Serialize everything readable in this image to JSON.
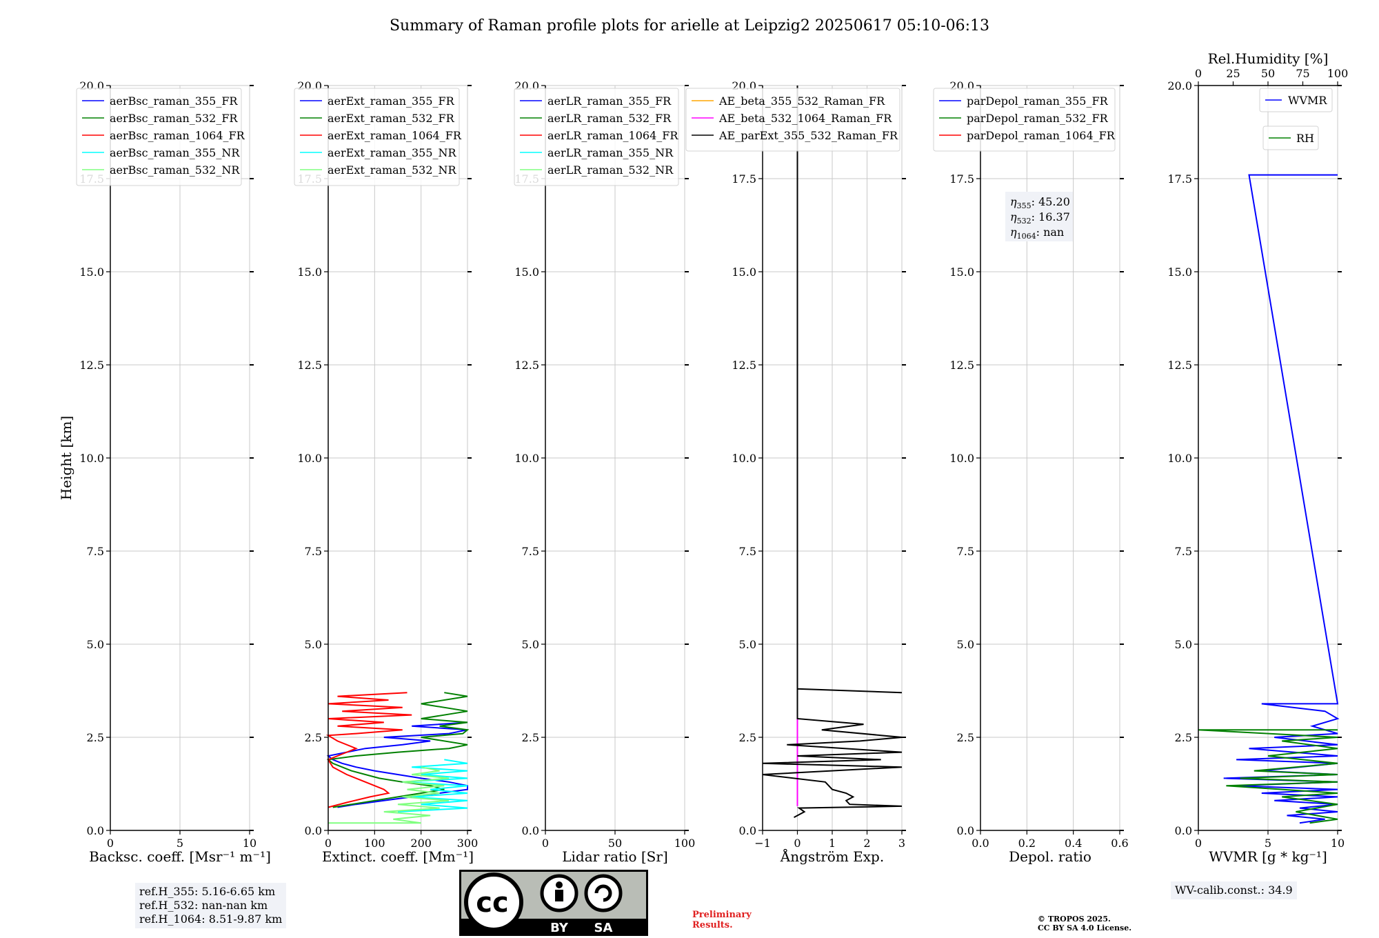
{
  "figure": {
    "title": "Summary of Raman profile plots for arielle at Leipzig2 20250617 05:10-06:13"
  },
  "chart_data": [
    {
      "type": "line",
      "panel": "backscatter",
      "xlabel": "Backsc. coeff. [Msr⁻¹ m⁻¹]",
      "ylabel": "Height [km]",
      "xlim": [
        0,
        10
      ],
      "ylim": [
        0,
        20
      ],
      "xticks": [
        "0",
        "5",
        "10"
      ],
      "yticks": [
        "0.0",
        "2.5",
        "5.0",
        "7.5",
        "10.0",
        "12.5",
        "15.0",
        "17.5",
        "20.0"
      ],
      "grid": true,
      "legend_position": "upper-left",
      "series": [
        {
          "name": "aerBsc_raman_355_FR",
          "color": "#0000ff",
          "points": []
        },
        {
          "name": "aerBsc_raman_532_FR",
          "color": "#008000",
          "points": []
        },
        {
          "name": "aerBsc_raman_1064_FR",
          "color": "#ff0000",
          "points": []
        },
        {
          "name": "aerBsc_raman_355_NR",
          "color": "#00ffff",
          "points": []
        },
        {
          "name": "aerBsc_raman_532_NR",
          "color": "#80ff80",
          "points": []
        }
      ],
      "info": [
        "ref.H_355: 5.16-6.65 km",
        "ref.H_532: nan-nan km",
        "ref.H_1064: 8.51-9.87 km"
      ]
    },
    {
      "type": "line",
      "panel": "extinction",
      "xlabel": "Extinct. coeff. [Mm⁻¹]",
      "xlim": [
        0,
        300
      ],
      "ylim": [
        0,
        20
      ],
      "xticks": [
        "0",
        "100",
        "200",
        "300"
      ],
      "yticks": [
        "0.0",
        "2.5",
        "5.0",
        "7.5",
        "10.0",
        "12.5",
        "15.0",
        "17.5",
        "20.0"
      ],
      "grid": true,
      "legend_position": "upper-left",
      "series": [
        {
          "name": "aerExt_raman_355_FR",
          "color": "#0000ff",
          "points": [
            [
              20,
              0.62
            ],
            [
              60,
              0.7
            ],
            [
              120,
              0.8
            ],
            [
              180,
              0.9
            ],
            [
              240,
              1.0
            ],
            [
              300,
              1.1
            ],
            [
              300,
              1.2
            ],
            [
              260,
              1.3
            ],
            [
              200,
              1.4
            ],
            [
              150,
              1.5
            ],
            [
              100,
              1.6
            ],
            [
              60,
              1.7
            ],
            [
              30,
              1.8
            ],
            [
              10,
              1.9
            ],
            [
              0,
              2.0
            ],
            [
              40,
              2.1
            ],
            [
              80,
              2.2
            ],
            [
              160,
              2.3
            ],
            [
              220,
              2.4
            ],
            [
              120,
              2.5
            ],
            [
              260,
              2.6
            ],
            [
              300,
              2.7
            ],
            [
              180,
              2.8
            ],
            [
              300,
              2.9
            ]
          ]
        },
        {
          "name": "aerExt_raman_532_FR",
          "color": "#008000",
          "points": [
            [
              10,
              0.62
            ],
            [
              50,
              0.7
            ],
            [
              100,
              0.8
            ],
            [
              150,
              0.9
            ],
            [
              200,
              1.0
            ],
            [
              250,
              1.1
            ],
            [
              220,
              1.2
            ],
            [
              160,
              1.3
            ],
            [
              110,
              1.4
            ],
            [
              80,
              1.5
            ],
            [
              50,
              1.6
            ],
            [
              30,
              1.7
            ],
            [
              10,
              1.8
            ],
            [
              0,
              1.9
            ],
            [
              60,
              2.0
            ],
            [
              150,
              2.1
            ],
            [
              260,
              2.2
            ],
            [
              300,
              2.3
            ],
            [
              200,
              2.5
            ],
            [
              290,
              2.6
            ],
            [
              300,
              2.7
            ],
            [
              240,
              2.8
            ],
            [
              300,
              2.9
            ],
            [
              200,
              3.0
            ],
            [
              300,
              3.2
            ],
            [
              200,
              3.4
            ],
            [
              300,
              3.6
            ],
            [
              250,
              3.7
            ]
          ]
        },
        {
          "name": "aerExt_raman_1064_FR",
          "color": "#ff0000",
          "points": [
            [
              0,
              0.62
            ],
            [
              40,
              0.75
            ],
            [
              90,
              0.9
            ],
            [
              130,
              1.0
            ],
            [
              120,
              1.1
            ],
            [
              80,
              1.3
            ],
            [
              40,
              1.5
            ],
            [
              10,
              1.7
            ],
            [
              0,
              1.9
            ],
            [
              20,
              2.0
            ],
            [
              60,
              2.2
            ],
            [
              20,
              2.4
            ],
            [
              0,
              2.55
            ],
            [
              60,
              2.6
            ],
            [
              160,
              2.7
            ],
            [
              20,
              2.8
            ],
            [
              120,
              2.9
            ],
            [
              0,
              3.0
            ],
            [
              180,
              3.1
            ],
            [
              30,
              3.2
            ],
            [
              160,
              3.3
            ],
            [
              0,
              3.4
            ],
            [
              130,
              3.5
            ],
            [
              20,
              3.6
            ],
            [
              170,
              3.7
            ]
          ]
        },
        {
          "name": "aerExt_raman_355_NR",
          "color": "#00ffff",
          "points": [
            [
              150,
              0.5
            ],
            [
              300,
              0.6
            ],
            [
              200,
              0.7
            ],
            [
              300,
              0.8
            ],
            [
              180,
              0.9
            ],
            [
              300,
              1.0
            ],
            [
              220,
              1.1
            ],
            [
              300,
              1.2
            ],
            [
              160,
              1.3
            ],
            [
              300,
              1.4
            ],
            [
              200,
              1.5
            ],
            [
              300,
              1.6
            ],
            [
              180,
              1.7
            ],
            [
              300,
              1.8
            ],
            [
              250,
              1.9
            ]
          ]
        },
        {
          "name": "aerExt_raman_532_NR",
          "color": "#80ff80",
          "points": [
            [
              0,
              0.2
            ],
            [
              200,
              0.2
            ],
            [
              140,
              0.3
            ],
            [
              220,
              0.4
            ],
            [
              120,
              0.5
            ],
            [
              240,
              0.6
            ],
            [
              150,
              0.7
            ],
            [
              260,
              0.8
            ],
            [
              160,
              0.9
            ],
            [
              240,
              1.0
            ],
            [
              170,
              1.1
            ],
            [
              250,
              1.2
            ],
            [
              160,
              1.3
            ],
            [
              260,
              1.4
            ],
            [
              180,
              1.5
            ],
            [
              240,
              1.6
            ],
            [
              200,
              1.7
            ]
          ]
        }
      ]
    },
    {
      "type": "line",
      "panel": "lidar_ratio",
      "xlabel": "Lidar ratio [Sr]",
      "xlim": [
        0,
        120
      ],
      "ylim": [
        0,
        20
      ],
      "xticks": [
        "0",
        "50",
        "100"
      ],
      "yticks": [
        "0.0",
        "2.5",
        "5.0",
        "7.5",
        "10.0",
        "12.5",
        "15.0",
        "17.5",
        "20.0"
      ],
      "grid": true,
      "legend_position": "upper-left",
      "series": [
        {
          "name": "aerLR_raman_355_FR",
          "color": "#0000ff",
          "points": []
        },
        {
          "name": "aerLR_raman_532_FR",
          "color": "#008000",
          "points": []
        },
        {
          "name": "aerLR_raman_1064_FR",
          "color": "#ff0000",
          "points": []
        },
        {
          "name": "aerLR_raman_355_NR",
          "color": "#00ffff",
          "points": []
        },
        {
          "name": "aerLR_raman_532_NR",
          "color": "#80ff80",
          "points": []
        }
      ]
    },
    {
      "type": "line",
      "panel": "angstrom",
      "xlabel": "Ångström Exp.",
      "xlim": [
        -1,
        3
      ],
      "ylim": [
        0,
        20
      ],
      "xticks": [
        "−1",
        "0",
        "1",
        "2",
        "3"
      ],
      "yticks": [
        "0.0",
        "2.5",
        "5.0",
        "7.5",
        "10.0",
        "12.5",
        "15.0",
        "17.5",
        "20.0"
      ],
      "grid": true,
      "legend_position": "upper-left",
      "series": [
        {
          "name": "AE_beta_355_532_Raman_FR",
          "color": "#ffa500",
          "points": []
        },
        {
          "name": "AE_beta_532_1064_Raman_FR",
          "color": "#ff00ff",
          "points": [
            [
              0,
              0.65
            ],
            [
              0,
              20
            ]
          ]
        },
        {
          "name": "AE_parExt_355_532_Raman_FR",
          "color": "#000000",
          "points": [
            [
              -0.1,
              0.35
            ],
            [
              0.2,
              0.5
            ],
            [
              0.05,
              0.6
            ],
            [
              3,
              0.65
            ],
            [
              1.5,
              0.7
            ],
            [
              1.4,
              0.8
            ],
            [
              1.6,
              0.9
            ],
            [
              1.4,
              1.0
            ],
            [
              1.0,
              1.1
            ],
            [
              0.8,
              1.3
            ],
            [
              -1,
              1.5
            ],
            [
              3,
              1.7
            ],
            [
              -1,
              1.8
            ],
            [
              2.4,
              1.9
            ],
            [
              0,
              2.0
            ],
            [
              3,
              2.1
            ],
            [
              -0.3,
              2.3
            ],
            [
              1.8,
              2.4
            ],
            [
              3,
              2.5
            ],
            [
              0.7,
              2.7
            ],
            [
              1.9,
              2.85
            ],
            [
              0,
              3.0
            ],
            [
              0,
              3.8
            ],
            [
              3,
              3.7
            ],
            [
              0,
              3.8
            ],
            [
              0,
              20
            ]
          ]
        }
      ]
    },
    {
      "type": "line",
      "panel": "depolarization",
      "xlabel": "Depol. ratio",
      "xlim": [
        0,
        0.6
      ],
      "ylim": [
        0,
        20
      ],
      "xticks": [
        "0.0",
        "0.2",
        "0.4",
        "0.6"
      ],
      "yticks": [
        "0.0",
        "2.5",
        "5.0",
        "7.5",
        "10.0",
        "12.5",
        "15.0",
        "17.5",
        "20.0"
      ],
      "grid": true,
      "legend_position": "upper-left",
      "series": [
        {
          "name": "parDepol_raman_355_FR",
          "color": "#0000ff",
          "points": []
        },
        {
          "name": "parDepol_raman_532_FR",
          "color": "#008000",
          "points": []
        },
        {
          "name": "parDepol_raman_1064_FR",
          "color": "#ff0000",
          "points": []
        }
      ],
      "eta": [
        {
          "sub": "355",
          "value": ": 45.20"
        },
        {
          "sub": "532",
          "value": ": 16.37"
        },
        {
          "sub": "1064",
          "value": ": nan"
        }
      ]
    },
    {
      "type": "line",
      "panel": "wvmr",
      "xlabel": "WVMR [g * kg⁻¹]",
      "xlabel_top": "Rel.Humidity [%]",
      "xlim": [
        0,
        11
      ],
      "xlim_top": [
        0,
        100
      ],
      "ylim": [
        0,
        20
      ],
      "xticks": [
        "0",
        "5",
        "10"
      ],
      "xticks_top": [
        "0",
        "25",
        "50",
        "75",
        "100"
      ],
      "yticks": [
        "0.0",
        "2.5",
        "5.0",
        "7.5",
        "10.0",
        "12.5",
        "15.0",
        "17.5",
        "20.0"
      ],
      "grid": true,
      "legend_position": "upper-right",
      "series": [
        {
          "name": "WVMR",
          "color": "#0000ff",
          "points": [
            [
              8,
              0.2
            ],
            [
              10,
              0.3
            ],
            [
              7,
              0.4
            ],
            [
              11,
              0.5
            ],
            [
              8,
              0.6
            ],
            [
              11,
              0.7
            ],
            [
              6,
              0.8
            ],
            [
              11,
              0.9
            ],
            [
              5,
              1.0
            ],
            [
              11,
              1.1
            ],
            [
              3,
              1.2
            ],
            [
              11,
              1.3
            ],
            [
              2,
              1.4
            ],
            [
              11,
              1.5
            ],
            [
              5,
              1.6
            ],
            [
              11,
              1.8
            ],
            [
              3,
              1.9
            ],
            [
              11,
              2.0
            ],
            [
              4,
              2.2
            ],
            [
              11,
              2.3
            ],
            [
              6,
              2.5
            ],
            [
              11,
              2.6
            ],
            [
              9,
              2.8
            ],
            [
              11,
              3.0
            ],
            [
              10,
              3.2
            ],
            [
              5,
              3.4
            ],
            [
              11,
              3.4
            ],
            [
              4,
              17.6
            ],
            [
              11,
              17.6
            ]
          ]
        },
        {
          "name": "RH",
          "color": "#008000",
          "xaxis": "top",
          "points": [
            [
              80,
              0.2
            ],
            [
              100,
              0.3
            ],
            [
              70,
              0.5
            ],
            [
              100,
              0.7
            ],
            [
              60,
              0.9
            ],
            [
              100,
              1.0
            ],
            [
              20,
              1.2
            ],
            [
              100,
              1.3
            ],
            [
              30,
              1.4
            ],
            [
              100,
              1.5
            ],
            [
              40,
              1.6
            ],
            [
              100,
              1.8
            ],
            [
              50,
              2.0
            ],
            [
              100,
              2.2
            ],
            [
              60,
              2.4
            ],
            [
              100,
              2.5
            ],
            [
              0,
              2.7
            ],
            [
              100,
              2.7
            ]
          ]
        }
      ],
      "info": [
        "WV-calib.const.: 34.9"
      ]
    }
  ],
  "footer": {
    "cc_main": "cc",
    "cc_by": "BY",
    "cc_sa": "SA",
    "prelim_line1": "Preliminary",
    "prelim_line2": "Results.",
    "copyright_line1": "© TROPOS 2025.",
    "copyright_line2": "CC BY SA 4.0 License."
  }
}
